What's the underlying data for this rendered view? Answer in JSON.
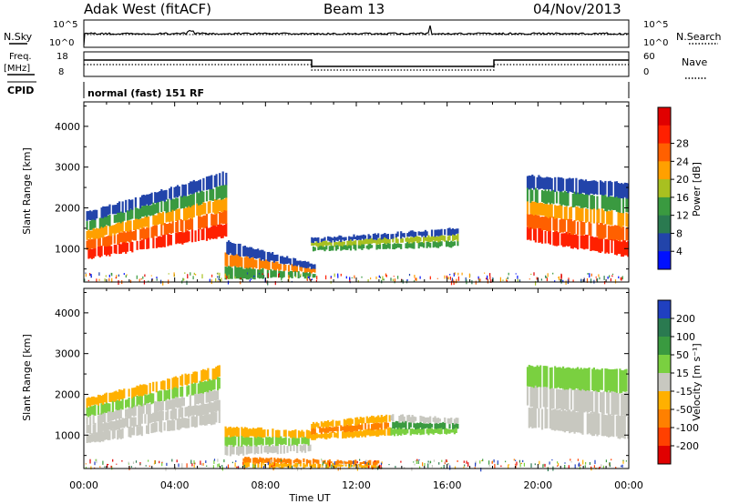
{
  "header": {
    "radar": "Adak West (fitACF)",
    "beam": "Beam 13",
    "date": "04/Nov/2013"
  },
  "status_panel": {
    "left_top_label": "N.Sky",
    "left_top_ticks": [
      "10^5",
      "10^0"
    ],
    "right_top_label": "N.Search",
    "right_top_ticks": [
      "10^5",
      "10^0"
    ],
    "freq_label_line1": "Freq.",
    "freq_label_line2": "[MHz]",
    "freq_ticks": [
      "18",
      "8"
    ],
    "nave_label": "Nave",
    "nave_ticks": [
      "60",
      "0"
    ],
    "cpid_label": "CPID",
    "cpid_text": "normal (fast) 151 RF"
  },
  "chart_data": [
    {
      "type": "heatmap",
      "name": "power",
      "ylabel": "Slant Range [km]",
      "xlabel": "Time UT",
      "ylim": [
        180,
        4600
      ],
      "yticks": [
        1000,
        2000,
        3000,
        4000
      ],
      "xticks": [
        "00:00",
        "04:00",
        "08:00",
        "12:00",
        "16:00",
        "20:00",
        "00:00"
      ],
      "colorbar": {
        "label": "Power [dB]",
        "ticks": [
          "4",
          "8",
          "12",
          "16",
          "20",
          "24",
          "28"
        ],
        "colors": [
          "#0010ff",
          "#2244aa",
          "#2a7a50",
          "#3a9a40",
          "#a8c020",
          "#ffa000",
          "#ff6000",
          "#ff2000",
          "#e00000"
        ]
      },
      "regions": [
        {
          "t0": 0.1,
          "t1": 6.3,
          "r_low": [
            750,
            1300
          ],
          "r_high": [
            1900,
            2900
          ],
          "colors": [
            "#ff2000",
            "#ff6000",
            "#ffa000",
            "#3a9a40",
            "#2244aa"
          ]
        },
        {
          "t0": 6.2,
          "t1": 10.2,
          "r_low": [
            250,
            300
          ],
          "r_high": [
            1200,
            600
          ],
          "colors": [
            "#3a9a40",
            "#ff8000",
            "#2244aa"
          ]
        },
        {
          "t0": 10.0,
          "t1": 16.5,
          "r_low": [
            950,
            1050
          ],
          "r_high": [
            1250,
            1500
          ],
          "colors": [
            "#3a9a40",
            "#a8c020",
            "#2244aa"
          ]
        },
        {
          "t0": 19.5,
          "t1": 24.0,
          "r_low": [
            1200,
            800
          ],
          "r_high": [
            2800,
            2600
          ],
          "colors": [
            "#ff2000",
            "#ff6000",
            "#ffa000",
            "#3a9a40",
            "#2244aa"
          ]
        }
      ]
    },
    {
      "type": "heatmap",
      "name": "velocity",
      "ylabel": "Slant Range [km]",
      "xlabel": "Time UT",
      "ylim": [
        180,
        4600
      ],
      "yticks": [
        1000,
        2000,
        3000,
        4000
      ],
      "xticks": [
        "00:00",
        "04:00",
        "08:00",
        "12:00",
        "16:00",
        "20:00",
        "00:00"
      ],
      "colorbar": {
        "label": "Velocity [m s⁻¹]",
        "ticks": [
          "200",
          "100",
          "50",
          "15",
          "-15",
          "-50",
          "-100",
          "-200"
        ],
        "colors": [
          "#2040c0",
          "#2a7a50",
          "#3a9a40",
          "#7ad040",
          "#c8c8c0",
          "#ffb000",
          "#ff8000",
          "#ff4000",
          "#e00000"
        ]
      },
      "regions": [
        {
          "t0": 0.1,
          "t1": 6.0,
          "r_low": [
            800,
            1300
          ],
          "r_high": [
            1900,
            2700
          ],
          "colors": [
            "#c8c8c0",
            "#c8c8c0",
            "#c8c8c0",
            "#7ad040",
            "#ffb000"
          ]
        },
        {
          "t0": 6.2,
          "t1": 10.0,
          "r_low": [
            500,
            600
          ],
          "r_high": [
            1200,
            1100
          ],
          "colors": [
            "#c8c8c0",
            "#7ad040",
            "#ffb000"
          ]
        },
        {
          "t0": 10.0,
          "t1": 13.5,
          "r_low": [
            900,
            1000
          ],
          "r_high": [
            1300,
            1500
          ],
          "colors": [
            "#ffb000",
            "#ff8000",
            "#ffb000"
          ]
        },
        {
          "t0": 13.5,
          "t1": 16.5,
          "r_low": [
            1000,
            1050
          ],
          "r_high": [
            1500,
            1400
          ],
          "colors": [
            "#7ad040",
            "#3a9a40",
            "#c8c8c0"
          ]
        },
        {
          "t0": 7.0,
          "t1": 13.0,
          "r_low": [
            200,
            200
          ],
          "r_high": [
            450,
            350
          ],
          "colors": [
            "#ffb000",
            "#ff8000"
          ]
        },
        {
          "t0": 19.5,
          "t1": 24.0,
          "r_low": [
            1200,
            900
          ],
          "r_high": [
            2700,
            2600
          ],
          "colors": [
            "#c8c8c0",
            "#c8c8c0",
            "#7ad040"
          ]
        }
      ]
    }
  ]
}
